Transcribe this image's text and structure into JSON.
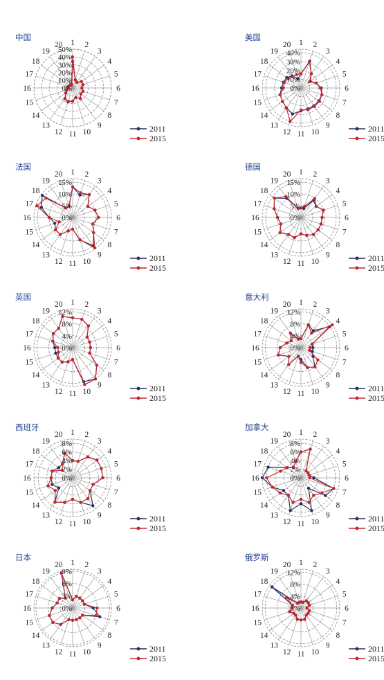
{
  "legend": {
    "items": [
      "2011",
      "2015"
    ]
  },
  "colors": {
    "s2011": "#2b2e63",
    "s2015": "#c0282f",
    "ring": "#777777",
    "spoke": "#9a9a9a",
    "title": "#1f3f8f"
  },
  "chart_data": [
    {
      "type": "radar",
      "title": "中国",
      "axes": [
        "1",
        "2",
        "3",
        "4",
        "5",
        "6",
        "7",
        "8",
        "9",
        "10",
        "11",
        "12",
        "13",
        "14",
        "15",
        "16",
        "17",
        "18",
        "19",
        "20"
      ],
      "rings": [
        "10%",
        "20%",
        "30%",
        "40%",
        "50%"
      ],
      "rmax": 50,
      "series": [
        {
          "name": "2011",
          "values": [
            34,
            11,
            9,
            14,
            14,
            12,
            14,
            13,
            17,
            13,
            17,
            19,
            17,
            11,
            8,
            6,
            6,
            5,
            5,
            5
          ]
        },
        {
          "name": "2015",
          "values": [
            40,
            11,
            9,
            14,
            14,
            12,
            14,
            13,
            17,
            13,
            17,
            18,
            17,
            11,
            8,
            6,
            6,
            5,
            5,
            4
          ]
        }
      ]
    },
    {
      "type": "radar",
      "title": "美国",
      "axes": [
        "1",
        "2",
        "3",
        "4",
        "5",
        "6",
        "7",
        "8",
        "9",
        "10",
        "11",
        "12",
        "13",
        "14",
        "15",
        "16",
        "17",
        "18",
        "19",
        "20"
      ],
      "rings": [
        "10%",
        "20%",
        "30%",
        "40%"
      ],
      "rmax": 44,
      "series": [
        {
          "name": "2011",
          "values": [
            16,
            32,
            20,
            13,
            18,
            23,
            25,
            25,
            25,
            25,
            26,
            31,
            28,
            26,
            25,
            22,
            21,
            20,
            17,
            11
          ]
        },
        {
          "name": "2015",
          "values": [
            16,
            31,
            20,
            12,
            18,
            22,
            25,
            26,
            26,
            26,
            25,
            40,
            28,
            26,
            25,
            20,
            20,
            18,
            16,
            16
          ]
        }
      ]
    },
    {
      "type": "radar",
      "title": "法国",
      "axes": [
        "1",
        "2",
        "3",
        "4",
        "5",
        "6",
        "7",
        "8",
        "9",
        "10",
        "11",
        "12",
        "13",
        "14",
        "15",
        "16",
        "17",
        "18",
        "19",
        "20"
      ],
      "rings": [
        "5%",
        "10%",
        "15%"
      ],
      "rmax": 16.5,
      "series": [
        {
          "name": "2011",
          "values": [
            13,
            10,
            12,
            8,
            10,
            11,
            9,
            11,
            15,
            10,
            5,
            6,
            9,
            9,
            8,
            10,
            14,
            16,
            5,
            5
          ]
        },
        {
          "name": "2015",
          "values": [
            13,
            11,
            12,
            8,
            10,
            11,
            9,
            11,
            16,
            10,
            5,
            6,
            9,
            9,
            6,
            10,
            16,
            14,
            5,
            5
          ]
        }
      ]
    },
    {
      "type": "radar",
      "title": "德国",
      "axes": [
        "1",
        "2",
        "3",
        "4",
        "5",
        "6",
        "7",
        "8",
        "9",
        "10",
        "11",
        "12",
        "13",
        "14",
        "15",
        "16",
        "17",
        "18",
        "19",
        "20"
      ],
      "rings": [
        "5%",
        "10%",
        "15%"
      ],
      "rmax": 16.5,
      "series": [
        {
          "name": "2011",
          "values": [
            4,
            4,
            9,
            8,
            10,
            9,
            9,
            9,
            9,
            8,
            7,
            9,
            9,
            11,
            9,
            10,
            12,
            14,
            10,
            4
          ]
        },
        {
          "name": "2015",
          "values": [
            4,
            5,
            10,
            8,
            10,
            9,
            9,
            9,
            9,
            8,
            7,
            9,
            9,
            11,
            9,
            10,
            12,
            14,
            11,
            4
          ]
        }
      ]
    },
    {
      "type": "radar",
      "title": "英国",
      "axes": [
        "1",
        "2",
        "3",
        "4",
        "5",
        "6",
        "7",
        "8",
        "9",
        "10",
        "11",
        "12",
        "13",
        "14",
        "15",
        "16",
        "17",
        "18",
        "19",
        "20"
      ],
      "rings": [
        "4%",
        "8%",
        "12%"
      ],
      "rmax": 13,
      "series": [
        {
          "name": "2011",
          "values": [
            10,
            10,
            9,
            6,
            6,
            6,
            6,
            10,
            13,
            12,
            4,
            5,
            6,
            6,
            6,
            6,
            7,
            8,
            8,
            11
          ]
        },
        {
          "name": "2015",
          "values": [
            10,
            10,
            9,
            6,
            6,
            6,
            6,
            10,
            13,
            13,
            4,
            5,
            6,
            6,
            5,
            5,
            7,
            8,
            8,
            11
          ]
        }
      ]
    },
    {
      "type": "radar",
      "title": "意大利",
      "axes": [
        "1",
        "2",
        "3",
        "4",
        "5",
        "6",
        "7",
        "8",
        "9",
        "10",
        "11",
        "12",
        "13",
        "14",
        "15",
        "16",
        "17",
        "18",
        "19",
        "20"
      ],
      "rings": [
        "4%",
        "8%",
        "12%"
      ],
      "rmax": 13,
      "series": [
        {
          "name": "2011",
          "values": [
            3,
            8,
            7,
            12,
            4,
            4,
            4,
            5,
            8,
            7,
            4,
            3,
            7,
            5,
            8,
            7,
            5,
            4,
            6,
            3
          ]
        },
        {
          "name": "2015",
          "values": [
            3,
            8,
            6,
            13,
            4,
            3,
            3,
            7,
            8,
            7,
            5,
            3,
            7,
            5,
            8,
            7,
            5,
            4,
            6,
            3
          ]
        }
      ]
    },
    {
      "type": "radar",
      "title": "西班牙",
      "axes": [
        "1",
        "2",
        "3",
        "4",
        "5",
        "6",
        "7",
        "8",
        "9",
        "10",
        "11",
        "12",
        "13",
        "14",
        "15",
        "16",
        "17",
        "18",
        "19",
        "20"
      ],
      "rings": [
        "2%",
        "4%",
        "6%",
        "8%"
      ],
      "rmax": 9,
      "series": [
        {
          "name": "2011",
          "values": [
            4,
            4,
            6,
            7,
            7,
            7,
            5,
            5,
            8,
            6,
            5,
            6,
            7,
            4,
            5,
            5,
            5,
            4,
            4,
            6
          ]
        },
        {
          "name": "2015",
          "values": [
            4,
            4,
            6,
            7,
            7,
            7,
            5,
            5,
            6,
            6,
            5,
            6,
            7,
            5,
            6,
            5,
            5,
            3,
            4,
            6
          ]
        }
      ]
    },
    {
      "type": "radar",
      "title": "加拿大",
      "axes": [
        "1",
        "2",
        "3",
        "4",
        "5",
        "6",
        "7",
        "8",
        "9",
        "10",
        "11",
        "12",
        "13",
        "14",
        "15",
        "16",
        "17",
        "18",
        "19",
        "20"
      ],
      "rings": [
        "2%",
        "4%",
        "6%",
        "8%"
      ],
      "rmax": 9,
      "series": [
        {
          "name": "2011",
          "values": [
            6,
            7,
            2,
            2,
            2,
            3,
            8,
            7,
            3,
            8,
            6,
            8,
            5,
            5,
            7,
            9,
            8,
            4,
            3,
            4
          ]
        },
        {
          "name": "2015",
          "values": [
            6,
            7,
            2,
            2,
            2,
            2,
            8,
            6,
            5,
            6,
            5,
            6,
            5,
            6,
            7,
            8,
            5,
            4,
            3,
            4
          ]
        }
      ]
    },
    {
      "type": "radar",
      "title": "日本",
      "axes": [
        "1",
        "2",
        "3",
        "4",
        "5",
        "6",
        "7",
        "8",
        "9",
        "10",
        "11",
        "12",
        "13",
        "14",
        "15",
        "16",
        "17",
        "18",
        "19",
        "20"
      ],
      "rings": [
        "3%",
        "6%",
        "9%"
      ],
      "rmax": 9.5,
      "series": [
        {
          "name": "2011",
          "values": [
            2,
            3,
            3,
            3,
            3,
            5,
            7,
            3,
            3,
            3,
            3,
            3,
            5,
            6,
            6,
            5,
            4,
            4,
            3,
            9
          ]
        },
        {
          "name": "2015",
          "values": [
            2,
            3,
            3,
            3,
            3,
            6,
            6,
            3,
            3,
            3,
            3,
            3,
            5,
            6,
            6,
            5,
            4,
            4,
            3,
            9
          ]
        }
      ]
    },
    {
      "type": "radar",
      "title": "俄罗斯",
      "axes": [
        "1",
        "2",
        "3",
        "4",
        "5",
        "6",
        "7",
        "8",
        "9",
        "10",
        "11",
        "12",
        "13",
        "14",
        "15",
        "16",
        "17",
        "18",
        "19",
        "20"
      ],
      "rings": [
        "4%",
        "8%",
        "12%"
      ],
      "rmax": 13,
      "series": [
        {
          "name": "2011",
          "values": [
            2,
            2,
            3,
            3,
            3,
            2,
            3,
            3,
            3,
            4,
            4,
            4,
            3,
            3,
            4,
            3,
            3,
            12,
            2,
            2
          ]
        },
        {
          "name": "2015",
          "values": [
            2,
            2,
            3,
            3,
            3,
            2,
            3,
            3,
            3,
            4,
            4,
            4,
            3,
            3,
            4,
            3,
            3,
            6,
            2,
            2
          ]
        }
      ]
    }
  ]
}
